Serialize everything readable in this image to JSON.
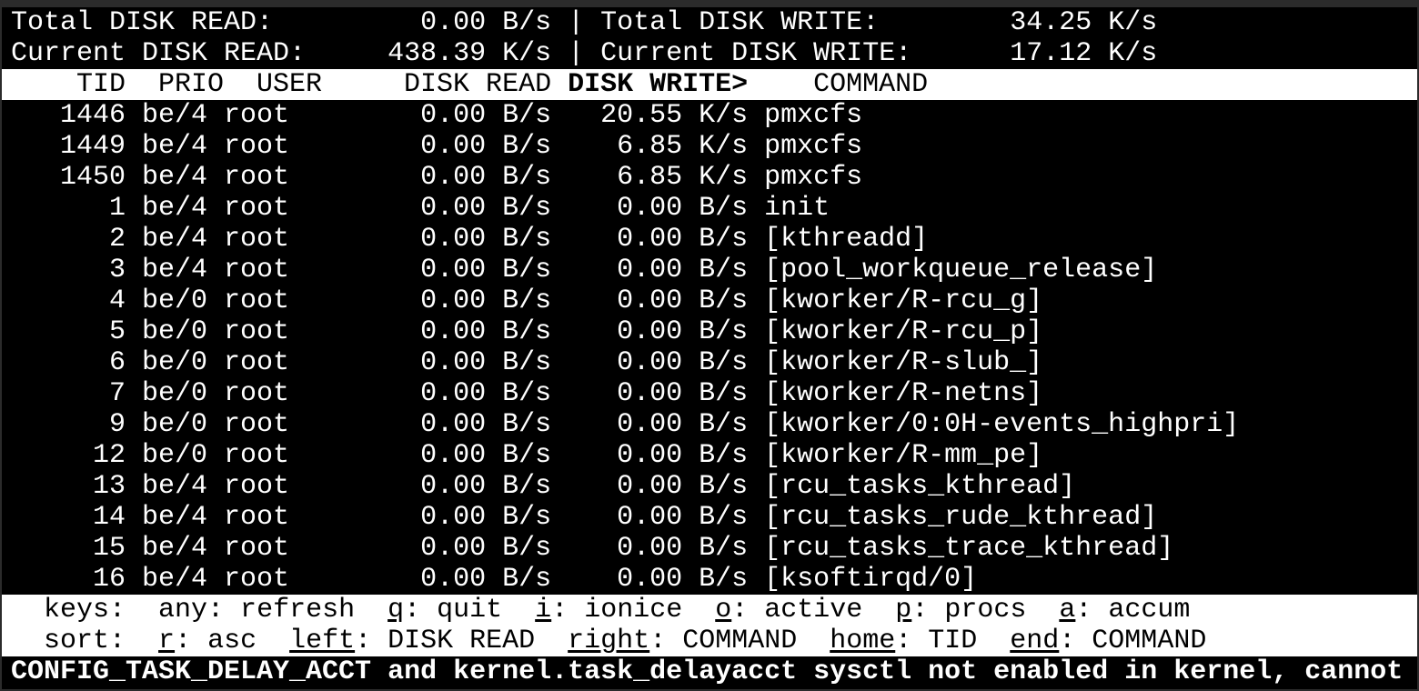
{
  "summary": {
    "total_read_label": "Total DISK READ:",
    "total_read_value": "0.00 B/s",
    "total_write_label": "Total DISK WRITE:",
    "total_write_value": "34.25 K/s",
    "current_read_label": "Current DISK READ:",
    "current_read_value": "438.39 K/s",
    "current_write_label": "Current DISK WRITE:",
    "current_write_value": "17.12 K/s",
    "separator": "|"
  },
  "columns": {
    "tid": "TID",
    "prio": "PRIO",
    "user": "USER",
    "disk_read": "DISK READ",
    "disk_write": "DISK WRITE>",
    "command": "COMMAND"
  },
  "rows": [
    {
      "tid": "1446",
      "prio": "be/4",
      "user": "root",
      "disk_read": "0.00 B/s",
      "disk_write": "20.55 K/s",
      "command": "pmxcfs"
    },
    {
      "tid": "1449",
      "prio": "be/4",
      "user": "root",
      "disk_read": "0.00 B/s",
      "disk_write": "6.85 K/s",
      "command": "pmxcfs"
    },
    {
      "tid": "1450",
      "prio": "be/4",
      "user": "root",
      "disk_read": "0.00 B/s",
      "disk_write": "6.85 K/s",
      "command": "pmxcfs"
    },
    {
      "tid": "1",
      "prio": "be/4",
      "user": "root",
      "disk_read": "0.00 B/s",
      "disk_write": "0.00 B/s",
      "command": "init"
    },
    {
      "tid": "2",
      "prio": "be/4",
      "user": "root",
      "disk_read": "0.00 B/s",
      "disk_write": "0.00 B/s",
      "command": "[kthreadd]"
    },
    {
      "tid": "3",
      "prio": "be/4",
      "user": "root",
      "disk_read": "0.00 B/s",
      "disk_write": "0.00 B/s",
      "command": "[pool_workqueue_release]"
    },
    {
      "tid": "4",
      "prio": "be/0",
      "user": "root",
      "disk_read": "0.00 B/s",
      "disk_write": "0.00 B/s",
      "command": "[kworker/R-rcu_g]"
    },
    {
      "tid": "5",
      "prio": "be/0",
      "user": "root",
      "disk_read": "0.00 B/s",
      "disk_write": "0.00 B/s",
      "command": "[kworker/R-rcu_p]"
    },
    {
      "tid": "6",
      "prio": "be/0",
      "user": "root",
      "disk_read": "0.00 B/s",
      "disk_write": "0.00 B/s",
      "command": "[kworker/R-slub_]"
    },
    {
      "tid": "7",
      "prio": "be/0",
      "user": "root",
      "disk_read": "0.00 B/s",
      "disk_write": "0.00 B/s",
      "command": "[kworker/R-netns]"
    },
    {
      "tid": "9",
      "prio": "be/0",
      "user": "root",
      "disk_read": "0.00 B/s",
      "disk_write": "0.00 B/s",
      "command": "[kworker/0:0H-events_highpri]"
    },
    {
      "tid": "12",
      "prio": "be/0",
      "user": "root",
      "disk_read": "0.00 B/s",
      "disk_write": "0.00 B/s",
      "command": "[kworker/R-mm_pe]"
    },
    {
      "tid": "13",
      "prio": "be/4",
      "user": "root",
      "disk_read": "0.00 B/s",
      "disk_write": "0.00 B/s",
      "command": "[rcu_tasks_kthread]"
    },
    {
      "tid": "14",
      "prio": "be/4",
      "user": "root",
      "disk_read": "0.00 B/s",
      "disk_write": "0.00 B/s",
      "command": "[rcu_tasks_rude_kthread]"
    },
    {
      "tid": "15",
      "prio": "be/4",
      "user": "root",
      "disk_read": "0.00 B/s",
      "disk_write": "0.00 B/s",
      "command": "[rcu_tasks_trace_kthread]"
    },
    {
      "tid": "16",
      "prio": "be/4",
      "user": "root",
      "disk_read": "0.00 B/s",
      "disk_write": "0.00 B/s",
      "command": "[ksoftirqd/0]"
    }
  ],
  "keys": {
    "label": "keys:",
    "items": [
      {
        "key": "",
        "text": "any: refresh"
      },
      {
        "key": "q",
        "text": ": quit"
      },
      {
        "key": "i",
        "text": ": ionice"
      },
      {
        "key": "o",
        "text": ": active"
      },
      {
        "key": "p",
        "text": ": procs"
      },
      {
        "key": "a",
        "text": ": accum"
      }
    ]
  },
  "sort": {
    "label": "sort:",
    "items": [
      {
        "key": "r",
        "text": ": asc"
      },
      {
        "key": "left",
        "text": ": DISK READ"
      },
      {
        "key": "right",
        "text": ": COMMAND"
      },
      {
        "key": "home",
        "text": ": TID"
      },
      {
        "key": "end",
        "text": ": COMMAND"
      }
    ]
  },
  "status_message": "CONFIG_TASK_DELAY_ACCT and kernel.task_delayacct sysctl not enabled in kernel, cannot"
}
